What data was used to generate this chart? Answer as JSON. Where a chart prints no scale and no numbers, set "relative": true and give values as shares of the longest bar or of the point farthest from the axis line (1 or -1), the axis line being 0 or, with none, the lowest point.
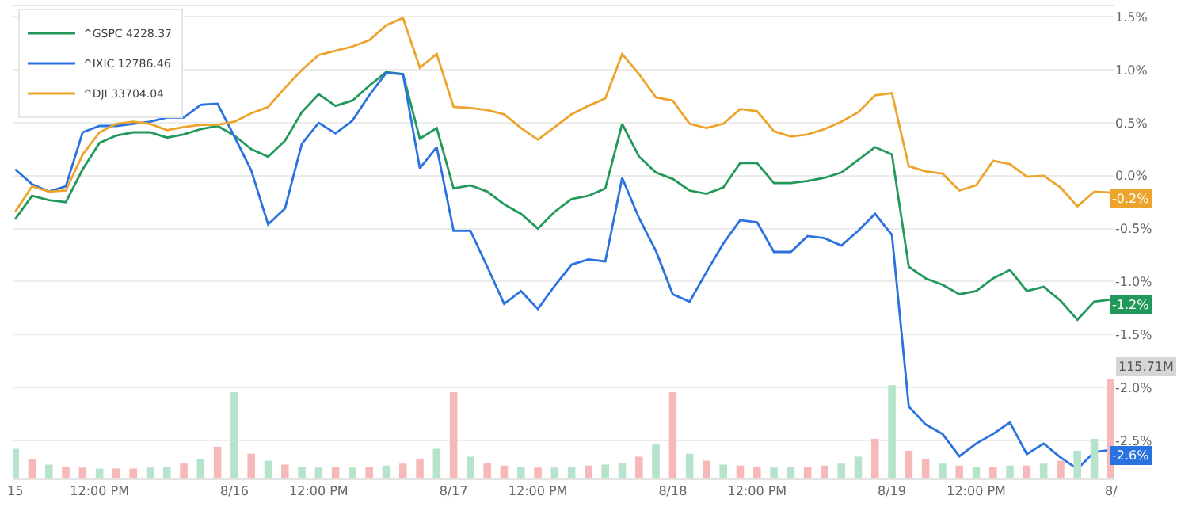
{
  "chart_data": [
    {
      "type": "line",
      "categories": [
        "15",
        null,
        null,
        null,
        null,
        "12:00 PM",
        null,
        null,
        null,
        null,
        null,
        null,
        null,
        "8/16",
        null,
        null,
        null,
        null,
        "12:00 PM",
        null,
        null,
        null,
        null,
        null,
        null,
        null,
        "8/17",
        null,
        null,
        null,
        null,
        "12:00 PM",
        null,
        null,
        null,
        null,
        null,
        null,
        null,
        "8/18",
        null,
        null,
        null,
        null,
        "12:00 PM",
        null,
        null,
        null,
        null,
        null,
        null,
        null,
        "8/19",
        null,
        null,
        null,
        null,
        "12:00 PM",
        null,
        null,
        null,
        null,
        null,
        null,
        null,
        "8/"
      ],
      "series": [
        {
          "name": "^GSPC 4228.37",
          "color": "#22985a",
          "values": [
            -0.41,
            -0.19,
            -0.23,
            -0.25,
            0.06,
            0.31,
            0.38,
            0.41,
            0.41,
            0.36,
            0.39,
            0.44,
            0.47,
            0.38,
            0.25,
            0.18,
            0.33,
            0.6,
            0.77,
            0.66,
            0.71,
            0.85,
            0.98,
            0.96,
            0.35,
            0.45,
            -0.12,
            -0.09,
            -0.15,
            -0.27,
            -0.36,
            -0.5,
            -0.34,
            -0.22,
            -0.19,
            -0.12,
            0.49,
            0.18,
            0.03,
            -0.03,
            -0.14,
            -0.17,
            -0.11,
            0.12,
            0.12,
            -0.07,
            -0.07,
            -0.05,
            -0.02,
            0.03,
            0.15,
            0.27,
            0.2,
            -0.86,
            -0.97,
            -1.03,
            -1.12,
            -1.09,
            -0.97,
            -0.89,
            -1.09,
            -1.05,
            -1.18,
            -1.36,
            -1.19,
            -1.17
          ]
        },
        {
          "name": "^IXIC 12786.46",
          "color": "#2a72df",
          "values": [
            0.06,
            -0.08,
            -0.15,
            -0.1,
            0.41,
            0.47,
            0.47,
            0.49,
            0.51,
            0.55,
            0.55,
            0.67,
            0.68,
            0.37,
            0.05,
            -0.46,
            -0.31,
            0.3,
            0.5,
            0.4,
            0.52,
            0.76,
            0.97,
            0.96,
            0.07,
            0.27,
            -0.52,
            -0.52,
            -0.86,
            -1.21,
            -1.09,
            -1.26,
            -1.04,
            -0.84,
            -0.79,
            -0.81,
            -0.02,
            -0.4,
            -0.71,
            -1.12,
            -1.19,
            -0.91,
            -0.64,
            -0.42,
            -0.44,
            -0.72,
            -0.72,
            -0.57,
            -0.59,
            -0.66,
            -0.52,
            -0.36,
            -0.56,
            -2.18,
            -2.35,
            -2.44,
            -2.65,
            -2.53,
            -2.44,
            -2.33,
            -2.63,
            -2.53,
            -2.66,
            -2.77,
            -2.61,
            -2.59
          ]
        },
        {
          "name": "^DJI 33704.04",
          "color": "#eca42c",
          "values": [
            -0.34,
            -0.1,
            -0.15,
            -0.14,
            0.2,
            0.41,
            0.49,
            0.51,
            0.49,
            0.43,
            0.46,
            0.48,
            0.48,
            0.51,
            0.59,
            0.65,
            0.83,
            1.0,
            1.14,
            1.18,
            1.22,
            1.28,
            1.42,
            1.49,
            1.02,
            1.15,
            0.65,
            0.64,
            0.62,
            0.58,
            0.45,
            0.34,
            0.46,
            0.58,
            0.66,
            0.73,
            1.15,
            0.96,
            0.74,
            0.71,
            0.49,
            0.45,
            0.49,
            0.63,
            0.61,
            0.42,
            0.37,
            0.39,
            0.44,
            0.51,
            0.6,
            0.76,
            0.78,
            0.09,
            0.04,
            0.02,
            -0.14,
            -0.09,
            0.14,
            0.11,
            -0.01,
            0.0,
            -0.11,
            -0.29,
            -0.15,
            -0.16
          ]
        }
      ],
      "ylim": [
        -2.86,
        1.6
      ],
      "yticks": [
        {
          "value": 1.5,
          "label": "1.5%"
        },
        {
          "value": 1.0,
          "label": "1.0%"
        },
        {
          "value": 0.5,
          "label": "0.5%"
        },
        {
          "value": 0.0,
          "label": "0.0%"
        },
        {
          "value": -0.5,
          "label": "-0.5%"
        },
        {
          "value": -1.0,
          "label": "-1.0%"
        },
        {
          "value": -1.5,
          "label": "-1.5%"
        },
        {
          "value": -2.0,
          "label": "-2.0%"
        },
        {
          "value": -2.5,
          "label": "-2.5%"
        }
      ],
      "grid": "y",
      "legend": "top left",
      "annotations": [
        {
          "text": "-0.2%",
          "x": "8/",
          "y": -0.16
        },
        {
          "text": "-1.2%",
          "x": "8/",
          "y": -1.17
        },
        {
          "text": "-2.6%",
          "x": "8/",
          "y": -2.59
        },
        "115.71M"
      ]
    },
    {
      "type": "bar",
      "relative": true,
      "categories": [
        null,
        null,
        null,
        null,
        null,
        null,
        null,
        null,
        null,
        null,
        null,
        null,
        null,
        null,
        null,
        null,
        null,
        null,
        null,
        null,
        null,
        null,
        null,
        null,
        null,
        null,
        null,
        null,
        null,
        null,
        null,
        null,
        null,
        null,
        null,
        null,
        null,
        null,
        null,
        null,
        null,
        null,
        null,
        null,
        null,
        null,
        null,
        null,
        null,
        null,
        null,
        null,
        null,
        null,
        null,
        null,
        null,
        null,
        null,
        null,
        null,
        null,
        null,
        null,
        null,
        null
      ],
      "values": [
        0.3,
        0.2,
        0.14,
        0.12,
        0.11,
        0.1,
        0.1,
        0.1,
        0.11,
        0.12,
        0.15,
        0.2,
        0.32,
        0.87,
        0.25,
        0.18,
        0.14,
        0.12,
        0.11,
        0.12,
        0.11,
        0.12,
        0.13,
        0.15,
        0.2,
        0.3,
        0.87,
        0.22,
        0.16,
        0.13,
        0.12,
        0.11,
        0.11,
        0.12,
        0.13,
        0.14,
        0.16,
        0.22,
        0.35,
        0.87,
        0.25,
        0.18,
        0.14,
        0.13,
        0.12,
        0.11,
        0.12,
        0.12,
        0.13,
        0.15,
        0.22,
        0.4,
        0.94,
        0.28,
        0.2,
        0.15,
        0.13,
        0.12,
        0.12,
        0.13,
        0.13,
        0.15,
        0.18,
        0.28,
        0.4,
        1
      ],
      "colors": [
        "#b5e3cb",
        "#f6b8b8",
        "#b5e3cb",
        "#f6b8b8",
        "#f6b8b8",
        "#b5e3cb",
        "#f6b8b8",
        "#f6b8b8",
        "#b5e3cb",
        "#b5e3cb",
        "#f6b8b8",
        "#b5e3cb",
        "#f6b8b8",
        "#b5e3cb",
        "#f6b8b8",
        "#b5e3cb",
        "#f6b8b8",
        "#b5e3cb",
        "#b5e3cb",
        "#f6b8b8",
        "#b5e3cb",
        "#f6b8b8",
        "#b5e3cb",
        "#f6b8b8",
        "#f6b8b8",
        "#b5e3cb",
        "#f6b8b8",
        "#b5e3cb",
        "#f6b8b8",
        "#f6b8b8",
        "#b5e3cb",
        "#f6b8b8",
        "#b5e3cb",
        "#b5e3cb",
        "#f6b8b8",
        "#b5e3cb",
        "#b5e3cb",
        "#f6b8b8",
        "#b5e3cb",
        "#f6b8b8",
        "#b5e3cb",
        "#f6b8b8",
        "#b5e3cb",
        "#f6b8b8",
        "#f6b8b8",
        "#b5e3cb",
        "#b5e3cb",
        "#f6b8b8",
        "#f6b8b8",
        "#b5e3cb",
        "#b5e3cb",
        "#f6b8b8",
        "#b5e3cb",
        "#f6b8b8",
        "#f6b8b8",
        "#b5e3cb",
        "#f6b8b8",
        "#b5e3cb",
        "#f6b8b8",
        "#b5e3cb",
        "#f6b8b8",
        "#b5e3cb",
        "#f6b8b8",
        "#b5e3cb",
        "#b5e3cb",
        "#f6b8b8"
      ]
    }
  ]
}
